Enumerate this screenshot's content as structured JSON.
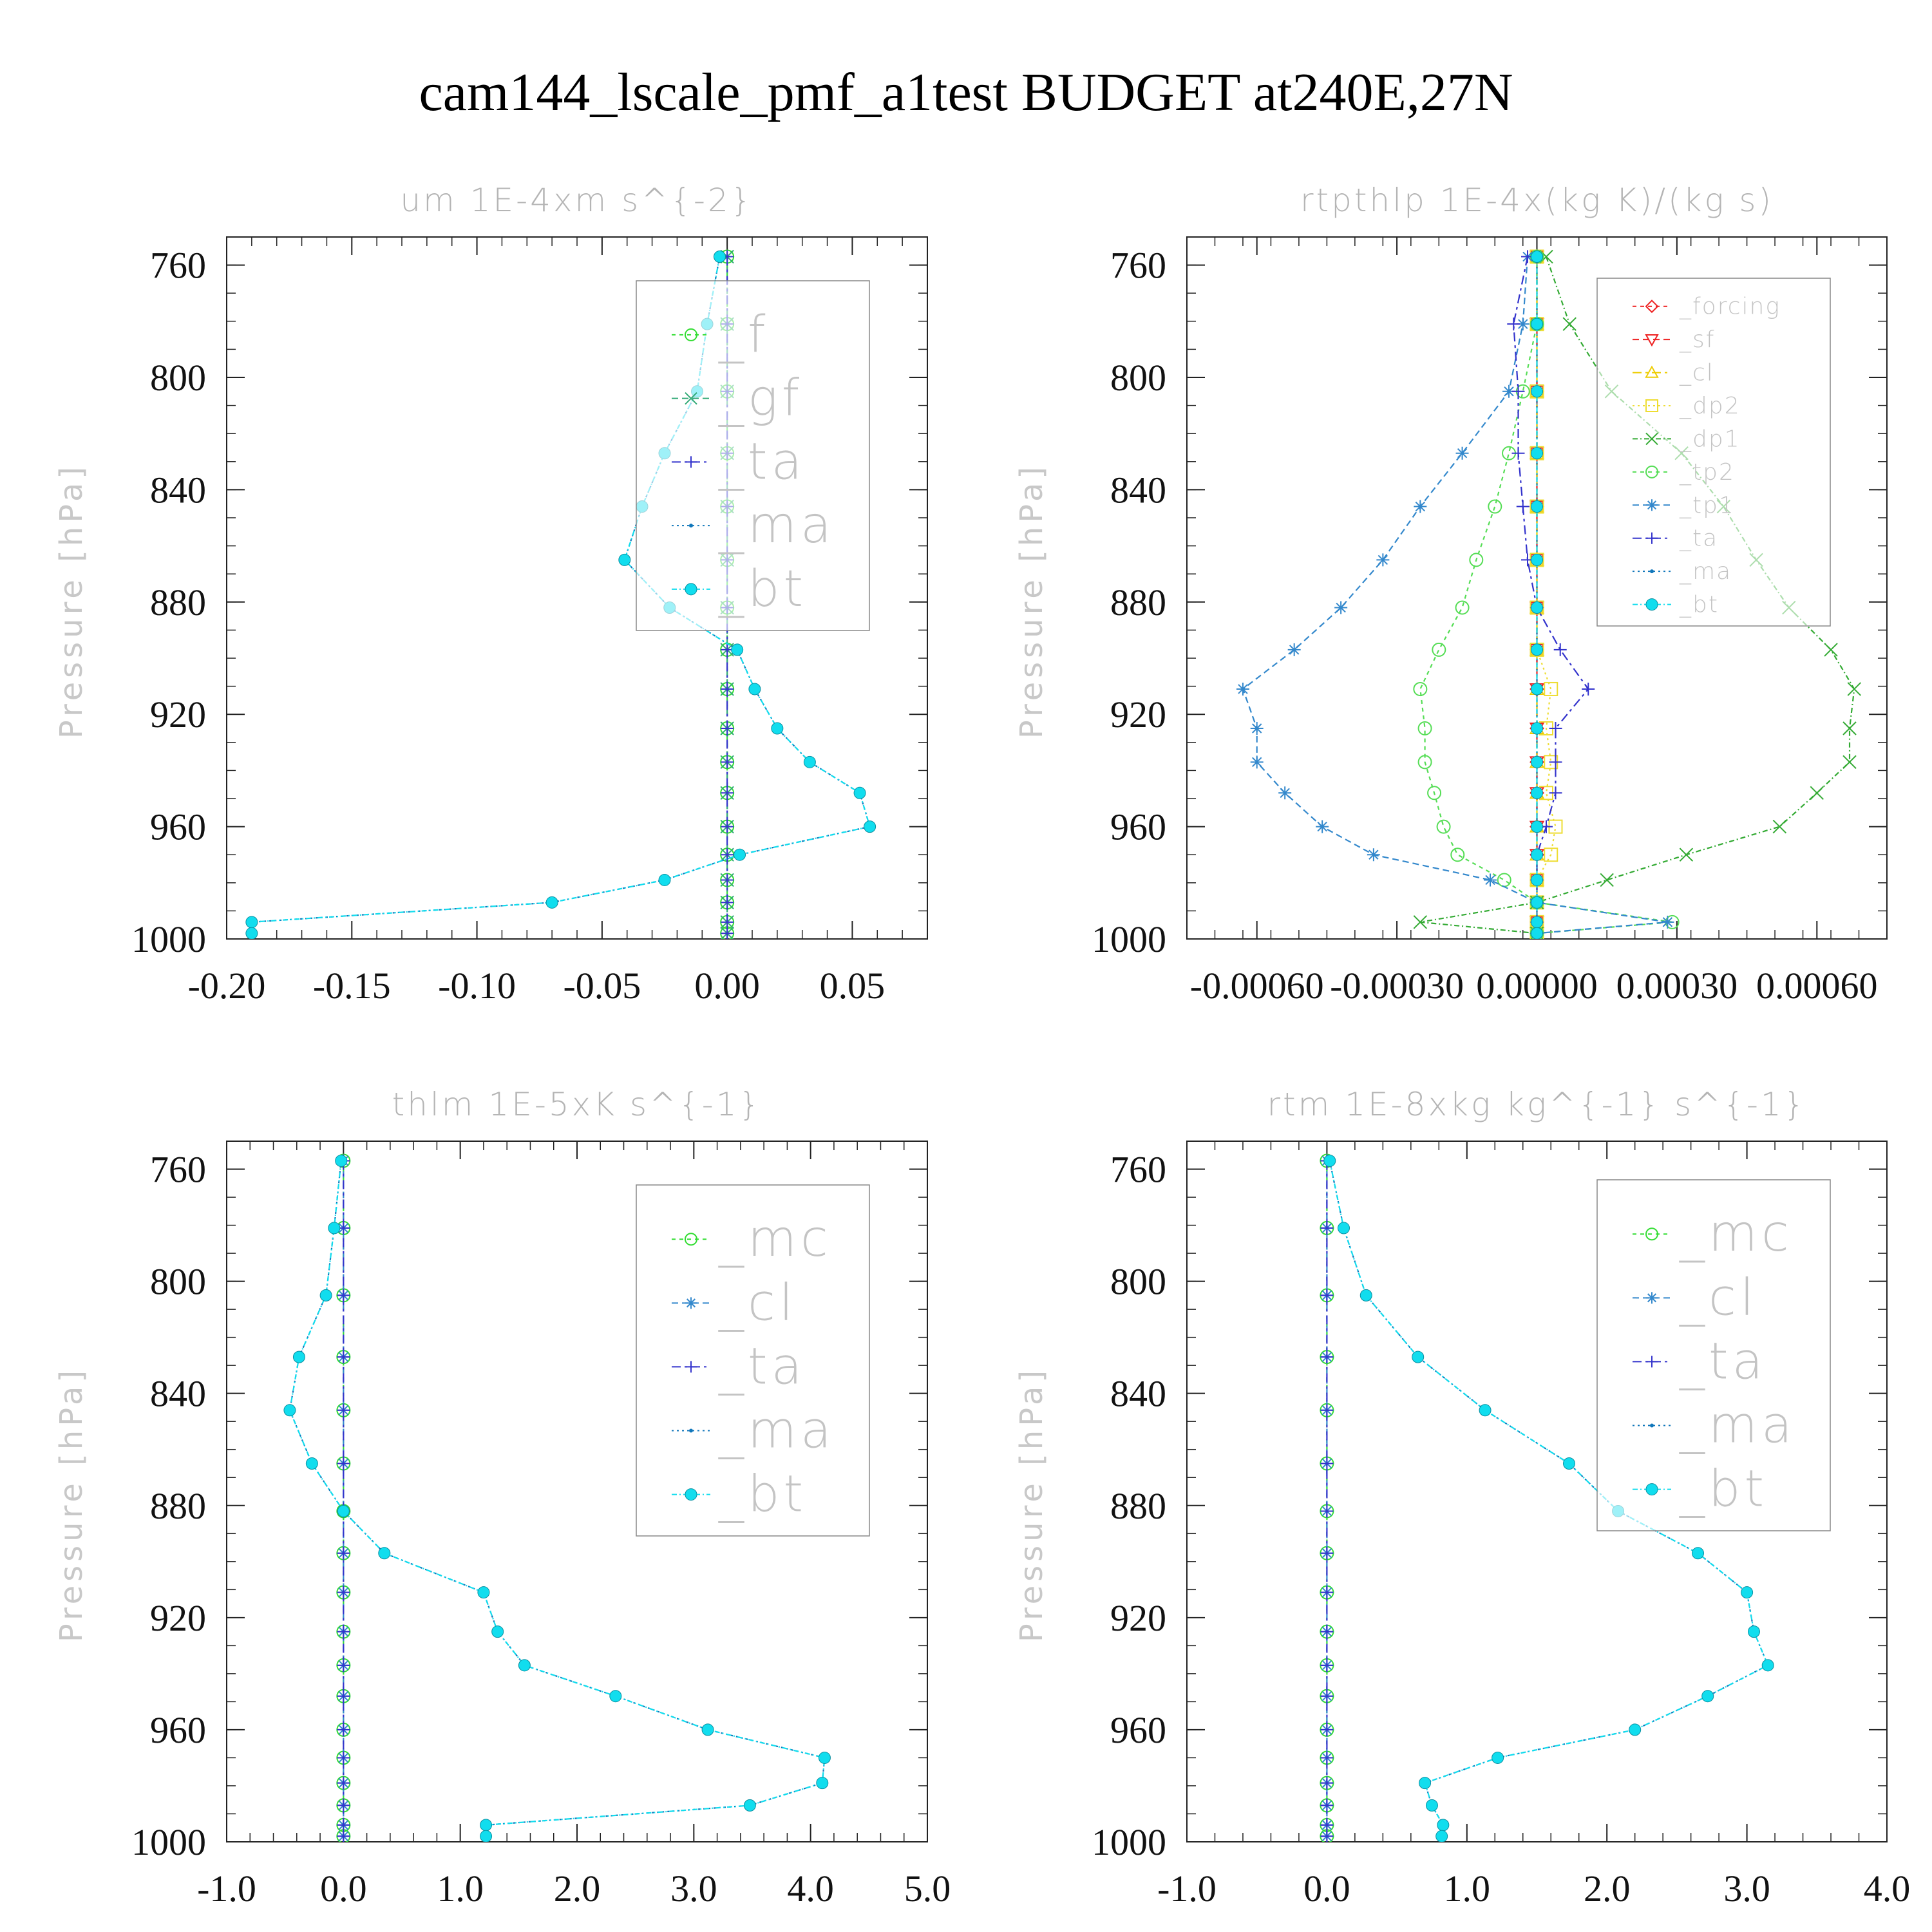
{
  "figure": {
    "title": "cam144_lscale_pmf_a1test  BUDGET at240E,27N"
  },
  "chart_data": [
    {
      "type": "line",
      "title": "um   1E-4xm s^{-2}",
      "xlabel": "",
      "ylabel": "Pressure [hPa]",
      "xlim": [
        -0.2,
        0.08
      ],
      "ylim": [
        750,
        1000
      ],
      "y_inverted": false,
      "xticks": [
        -0.2,
        -0.15,
        -0.1,
        -0.05,
        0.0,
        0.05
      ],
      "xtick_labels": [
        "-0.20",
        "-0.15",
        "-0.10",
        "-0.05",
        "0.00",
        "0.05"
      ],
      "yticks": [
        760,
        800,
        840,
        880,
        920,
        960,
        1000
      ],
      "ytick_labels": [
        "760",
        "800",
        "840",
        "880",
        "920",
        "960",
        "1000"
      ],
      "legend_position": "top-right",
      "y": [
        757,
        781,
        805,
        827,
        846,
        865,
        882,
        897,
        911,
        925,
        937,
        948,
        960,
        970,
        979,
        987,
        994,
        998
      ],
      "series": [
        {
          "name": "_f",
          "color": "#33dd33",
          "marker": "circle",
          "values": [
            0,
            0,
            0,
            0,
            0,
            0,
            0,
            0,
            0,
            0,
            0,
            0,
            0,
            0,
            0,
            0,
            0,
            0
          ]
        },
        {
          "name": "_gf",
          "color": "#33aa77",
          "marker": "x",
          "values": [
            0,
            0,
            0,
            0,
            0,
            0,
            0,
            0,
            0,
            0,
            0,
            0,
            0,
            0,
            0,
            0,
            0,
            0
          ]
        },
        {
          "name": "_ta",
          "color": "#3333cc",
          "marker": "plus",
          "values": [
            0,
            0,
            0,
            0,
            0,
            0,
            0,
            0,
            0,
            0,
            0,
            0,
            0,
            0,
            0,
            0,
            0,
            0
          ]
        },
        {
          "name": "_ma",
          "color": "#1177bb",
          "marker": "dot",
          "values": [
            -0.003,
            -0.008,
            -0.012,
            -0.025,
            -0.034,
            -0.041,
            -0.023,
            0.004,
            0.011,
            0.02,
            0.033,
            0.053,
            0.057,
            0.005,
            -0.025,
            -0.07,
            -0.19,
            -0.19
          ]
        },
        {
          "name": "_bt",
          "color": "#11ddee",
          "marker": "filled-circle",
          "values": [
            -0.003,
            -0.008,
            -0.012,
            -0.025,
            -0.034,
            -0.041,
            -0.023,
            0.004,
            0.011,
            0.02,
            0.033,
            0.053,
            0.057,
            0.005,
            -0.025,
            -0.07,
            -0.19,
            -0.19
          ]
        }
      ]
    },
    {
      "type": "line",
      "title": "rtpthlp   1E-4x(kg K)/(kg s)",
      "xlabel": "",
      "ylabel": "Pressure [hPa]",
      "xlim": [
        -0.00075,
        0.00075
      ],
      "ylim": [
        750,
        1000
      ],
      "xticks": [
        -0.0006,
        -0.0003,
        0.0,
        0.0003,
        0.0006
      ],
      "xtick_labels": [
        "-0.00060",
        "-0.00030",
        "0.00000",
        "0.00030",
        "0.00060"
      ],
      "yticks": [
        760,
        800,
        840,
        880,
        920,
        960,
        1000
      ],
      "ytick_labels": [
        "760",
        "800",
        "840",
        "880",
        "920",
        "960",
        "1000"
      ],
      "legend_position": "top-right",
      "y": [
        757,
        781,
        805,
        827,
        846,
        865,
        882,
        897,
        911,
        925,
        937,
        948,
        960,
        970,
        979,
        987,
        994,
        998
      ],
      "series": [
        {
          "name": "_forcing",
          "color": "#ee2222",
          "marker": "diamond",
          "values": [
            0,
            0,
            0,
            0,
            0,
            0,
            0,
            0,
            0,
            0,
            0,
            0,
            0,
            0,
            0,
            0,
            0,
            0
          ]
        },
        {
          "name": "_sf",
          "color": "#ee2222",
          "marker": "triangle-down",
          "values": [
            0,
            0,
            0,
            0,
            0,
            0,
            0,
            0,
            0,
            0,
            0,
            0,
            0,
            0,
            0,
            0,
            0,
            0
          ]
        },
        {
          "name": "_cl",
          "color": "#eecc00",
          "marker": "triangle",
          "values": [
            0,
            0,
            0,
            0,
            0,
            0,
            0,
            0,
            0,
            0,
            0,
            0,
            0,
            0,
            0,
            0,
            0,
            0
          ]
        },
        {
          "name": "_dp2",
          "color": "#eedd33",
          "marker": "square",
          "values": [
            0,
            0,
            0,
            0,
            0,
            0,
            0,
            0,
            3e-05,
            2e-05,
            3e-05,
            2e-05,
            4e-05,
            3e-05,
            0,
            0,
            0,
            0
          ]
        },
        {
          "name": "_dp1",
          "color": "#33aa33",
          "marker": "x",
          "values": [
            2e-05,
            7e-05,
            0.00016,
            0.00031,
            0.0004,
            0.00047,
            0.00054,
            0.00063,
            0.00068,
            0.00067,
            0.00067,
            0.0006,
            0.00052,
            0.00032,
            0.00015,
            0.0,
            -0.00025,
            0
          ]
        },
        {
          "name": "_tp2",
          "color": "#55dd55",
          "marker": "circle",
          "values": [
            0,
            0,
            -3e-05,
            -6e-05,
            -9e-05,
            -0.00013,
            -0.00016,
            -0.00021,
            -0.00025,
            -0.00024,
            -0.00024,
            -0.00022,
            -0.0002,
            -0.00017,
            -7e-05,
            0,
            0.00029,
            0
          ]
        },
        {
          "name": "_tp1",
          "color": "#3388cc",
          "marker": "asterisk",
          "values": [
            -2e-05,
            -3e-05,
            -6e-05,
            -0.00016,
            -0.00025,
            -0.00033,
            -0.00042,
            -0.00052,
            -0.00063,
            -0.0006,
            -0.0006,
            -0.00054,
            -0.00046,
            -0.00035,
            -0.0001,
            0,
            0.00028,
            0
          ]
        },
        {
          "name": "_ta",
          "color": "#3333cc",
          "marker": "plus",
          "values": [
            -2e-05,
            -5e-05,
            -4e-05,
            -4e-05,
            -3e-05,
            -2e-05,
            0,
            5e-05,
            0.00011,
            4e-05,
            4e-05,
            4e-05,
            2e-05,
            0,
            0,
            0,
            0,
            0
          ]
        },
        {
          "name": "_ma",
          "color": "#1177bb",
          "marker": "dot",
          "values": [
            0,
            0,
            0,
            0,
            0,
            0,
            0,
            0,
            0,
            0,
            0,
            0,
            0,
            0,
            0,
            0,
            0,
            0
          ]
        },
        {
          "name": "_bt",
          "color": "#11ddee",
          "marker": "filled-circle",
          "values": [
            0,
            0,
            0,
            0,
            0,
            0,
            0,
            0,
            0,
            0,
            0,
            0,
            0,
            0,
            0,
            0,
            0,
            0
          ]
        }
      ]
    },
    {
      "type": "line",
      "title": "thlm   1E-5xK s^{-1}",
      "xlabel": "",
      "ylabel": "Pressure [hPa]",
      "xlim": [
        -1.0,
        5.0
      ],
      "ylim": [
        750,
        1000
      ],
      "xticks": [
        -1,
        0,
        1,
        2,
        3,
        4,
        5
      ],
      "xtick_labels": [
        "-1.0",
        "0.0",
        "1.0",
        "2.0",
        "3.0",
        "4.0",
        "5.0"
      ],
      "yticks": [
        760,
        800,
        840,
        880,
        920,
        960,
        1000
      ],
      "ytick_labels": [
        "760",
        "800",
        "840",
        "880",
        "920",
        "960",
        "1000"
      ],
      "legend_position": "top-right",
      "y": [
        757,
        781,
        805,
        827,
        846,
        865,
        882,
        897,
        911,
        925,
        937,
        948,
        960,
        970,
        979,
        987,
        994,
        998
      ],
      "series": [
        {
          "name": "_mc",
          "color": "#33dd33",
          "marker": "circle",
          "values": [
            0,
            0,
            0,
            0,
            0,
            0,
            0,
            0,
            0,
            0,
            0,
            0,
            0,
            0,
            0,
            0,
            0,
            0
          ]
        },
        {
          "name": "_cl",
          "color": "#3388cc",
          "marker": "asterisk",
          "values": [
            0,
            0,
            0,
            0,
            0,
            0,
            0,
            0,
            0,
            0,
            0,
            0,
            0,
            0,
            0,
            0,
            0,
            0
          ]
        },
        {
          "name": "_ta",
          "color": "#3333cc",
          "marker": "plus",
          "values": [
            0,
            0,
            0,
            0,
            0,
            0,
            0,
            0,
            0,
            0,
            0,
            0,
            0,
            0,
            0,
            0,
            0,
            0
          ]
        },
        {
          "name": "_ma",
          "color": "#1177bb",
          "marker": "dot",
          "values": [
            -0.02,
            -0.08,
            -0.15,
            -0.38,
            -0.46,
            -0.27,
            0.0,
            0.35,
            1.2,
            1.32,
            1.55,
            2.33,
            3.12,
            4.12,
            4.1,
            3.48,
            1.22,
            1.22
          ]
        },
        {
          "name": "_bt",
          "color": "#11ddee",
          "marker": "filled-circle",
          "values": [
            -0.02,
            -0.08,
            -0.15,
            -0.38,
            -0.46,
            -0.27,
            0.0,
            0.35,
            1.2,
            1.32,
            1.55,
            2.33,
            3.12,
            4.12,
            4.1,
            3.48,
            1.22,
            1.22
          ]
        }
      ]
    },
    {
      "type": "line",
      "title": "rtm   1E-8xkg kg^{-1} s^{-1}",
      "xlabel": "",
      "ylabel": "Pressure [hPa]",
      "xlim": [
        -1.0,
        4.0
      ],
      "ylim": [
        750,
        1000
      ],
      "xticks": [
        -1,
        0,
        1,
        2,
        3,
        4
      ],
      "xtick_labels": [
        "-1.0",
        "0.0",
        "1.0",
        "2.0",
        "3.0",
        "4.0"
      ],
      "yticks": [
        760,
        800,
        840,
        880,
        920,
        960,
        1000
      ],
      "ytick_labels": [
        "760",
        "800",
        "840",
        "880",
        "920",
        "960",
        "1000"
      ],
      "legend_position": "top-right",
      "y": [
        757,
        781,
        805,
        827,
        846,
        865,
        882,
        897,
        911,
        925,
        937,
        948,
        960,
        970,
        979,
        987,
        994,
        998
      ],
      "series": [
        {
          "name": "_mc",
          "color": "#33dd33",
          "marker": "circle",
          "values": [
            0,
            0,
            0,
            0,
            0,
            0,
            0,
            0,
            0,
            0,
            0,
            0,
            0,
            0,
            0,
            0,
            0,
            0
          ]
        },
        {
          "name": "_cl",
          "color": "#3388cc",
          "marker": "asterisk",
          "values": [
            0,
            0,
            0,
            0,
            0,
            0,
            0,
            0,
            0,
            0,
            0,
            0,
            0,
            0,
            0,
            0,
            0,
            0
          ]
        },
        {
          "name": "_ta",
          "color": "#3333cc",
          "marker": "plus",
          "values": [
            0,
            0,
            0,
            0,
            0,
            0,
            0,
            0,
            0,
            0,
            0,
            0,
            0,
            0,
            0,
            0,
            0,
            0
          ]
        },
        {
          "name": "_ma",
          "color": "#1177bb",
          "marker": "dot",
          "values": [
            0.02,
            0.12,
            0.28,
            0.65,
            1.13,
            1.73,
            2.08,
            2.65,
            3.0,
            3.05,
            3.15,
            2.72,
            2.2,
            1.22,
            0.7,
            0.75,
            0.83,
            0.82
          ]
        },
        {
          "name": "_bt",
          "color": "#11ddee",
          "marker": "filled-circle",
          "values": [
            0.02,
            0.12,
            0.28,
            0.65,
            1.13,
            1.73,
            2.08,
            2.65,
            3.0,
            3.05,
            3.15,
            2.72,
            2.2,
            1.22,
            0.7,
            0.75,
            0.83,
            0.82
          ]
        }
      ]
    }
  ]
}
